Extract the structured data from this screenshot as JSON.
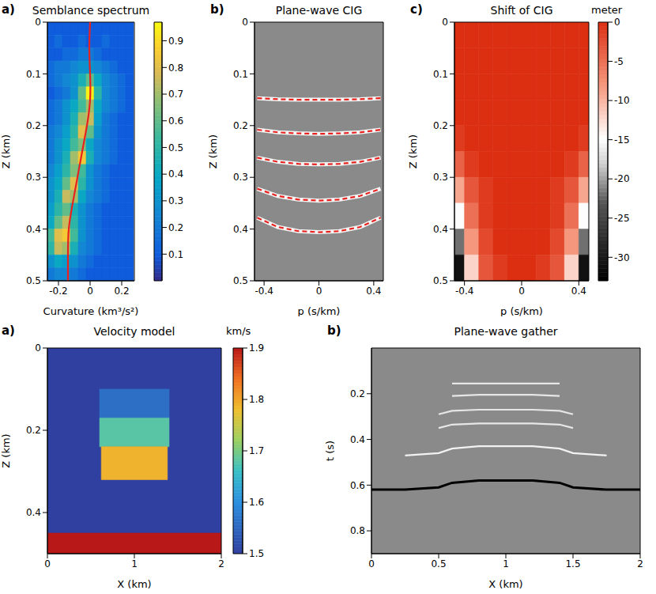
{
  "chart_data": [
    {
      "type": "heatmap",
      "label": "a)",
      "title": "Semblance spectrum",
      "x_label": "Curvature (km³/s²)",
      "y_label": "Z (km)",
      "xlim": [
        -0.27,
        0.28
      ],
      "xticks": [
        -0.2,
        0,
        0.2
      ],
      "ylim": [
        0,
        0.5
      ],
      "yticks": [
        0,
        0.1,
        0.2,
        0.3,
        0.4,
        0.5
      ],
      "cells": {
        "x": [
          -0.25,
          -0.2,
          -0.15,
          -0.1,
          -0.05,
          0,
          0.05,
          0.1,
          0.15,
          0.2,
          0.25
        ],
        "y": [
          0.0125,
          0.0375,
          0.0625,
          0.0875,
          0.1125,
          0.1375,
          0.1625,
          0.1875,
          0.2125,
          0.2375,
          0.2625,
          0.2875,
          0.3125,
          0.3375,
          0.3625,
          0.3875,
          0.4125,
          0.4375,
          0.4625,
          0.4875
        ],
        "values": [
          [
            0.1,
            0.1,
            0.1,
            0.1,
            0.1,
            0.1,
            0.1,
            0.1,
            0.1,
            0.1,
            0.1
          ],
          [
            0.1,
            0.15,
            0.1,
            0.1,
            0.15,
            0.1,
            0.1,
            0.15,
            0.1,
            0.1,
            0.1
          ],
          [
            0.1,
            0.1,
            0.15,
            0.15,
            0.2,
            0.2,
            0.15,
            0.1,
            0.1,
            0.1,
            0.1
          ],
          [
            0.15,
            0.2,
            0.2,
            0.25,
            0.3,
            0.3,
            0.25,
            0.2,
            0.15,
            0.1,
            0.1
          ],
          [
            0.15,
            0.2,
            0.25,
            0.3,
            0.45,
            0.6,
            0.4,
            0.25,
            0.2,
            0.15,
            0.1
          ],
          [
            0.1,
            0.15,
            0.2,
            0.3,
            0.6,
            0.95,
            0.5,
            0.25,
            0.2,
            0.15,
            0.1
          ],
          [
            0.15,
            0.2,
            0.3,
            0.4,
            0.55,
            0.7,
            0.4,
            0.25,
            0.2,
            0.15,
            0.1
          ],
          [
            0.15,
            0.2,
            0.3,
            0.45,
            0.7,
            0.75,
            0.35,
            0.2,
            0.15,
            0.1,
            0.1
          ],
          [
            0.2,
            0.25,
            0.35,
            0.5,
            0.8,
            0.6,
            0.3,
            0.2,
            0.15,
            0.1,
            0.1
          ],
          [
            0.2,
            0.3,
            0.4,
            0.55,
            0.65,
            0.4,
            0.25,
            0.2,
            0.15,
            0.1,
            0.1
          ],
          [
            0.2,
            0.3,
            0.45,
            0.7,
            0.85,
            0.45,
            0.25,
            0.2,
            0.15,
            0.1,
            0.1
          ],
          [
            0.25,
            0.35,
            0.5,
            0.65,
            0.55,
            0.3,
            0.2,
            0.15,
            0.1,
            0.1,
            0.1
          ],
          [
            0.3,
            0.4,
            0.6,
            0.8,
            0.5,
            0.3,
            0.2,
            0.15,
            0.1,
            0.1,
            0.1
          ],
          [
            0.3,
            0.45,
            0.75,
            0.7,
            0.4,
            0.25,
            0.2,
            0.15,
            0.1,
            0.1,
            0.1
          ],
          [
            0.35,
            0.5,
            0.6,
            0.45,
            0.3,
            0.2,
            0.15,
            0.1,
            0.1,
            0.1,
            0.1
          ],
          [
            0.4,
            0.6,
            0.75,
            0.5,
            0.3,
            0.2,
            0.15,
            0.1,
            0.1,
            0.1,
            0.1
          ],
          [
            0.55,
            0.8,
            0.85,
            0.55,
            0.3,
            0.2,
            0.15,
            0.1,
            0.1,
            0.1,
            0.1
          ],
          [
            0.5,
            0.75,
            0.7,
            0.45,
            0.25,
            0.2,
            0.15,
            0.1,
            0.1,
            0.1,
            0.1
          ],
          [
            0.3,
            0.4,
            0.35,
            0.3,
            0.2,
            0.15,
            0.1,
            0.1,
            0.1,
            0.1,
            0.1
          ],
          [
            0.2,
            0.25,
            0.25,
            0.2,
            0.15,
            0.1,
            0.1,
            0.1,
            0.1,
            0.1,
            0.1
          ]
        ]
      },
      "colorbar": {
        "range": [
          0,
          0.97
        ],
        "ticks": [
          0.1,
          0.2,
          0.3,
          0.4,
          0.5,
          0.6,
          0.7,
          0.8,
          0.9
        ]
      },
      "series": [
        {
          "color": "#e8231f",
          "line_style": "solid",
          "x": [
            0,
            -0.005,
            0,
            0,
            -0.02,
            -0.05,
            -0.08,
            -0.11,
            -0.135,
            -0.14,
            -0.14
          ],
          "y": [
            0,
            0.05,
            0.1,
            0.15,
            0.2,
            0.25,
            0.3,
            0.35,
            0.4,
            0.45,
            0.5
          ]
        }
      ]
    },
    {
      "type": "line",
      "label": "b)",
      "title": "Plane-wave CIG",
      "x_label": "p (s/km)",
      "y_label": "Z (km)",
      "xlim": [
        -0.47,
        0.47
      ],
      "xticks": [
        -0.4,
        0,
        0.4
      ],
      "ylim": [
        0,
        0.5
      ],
      "yticks": [
        0,
        0.1,
        0.2,
        0.3,
        0.4,
        0.5
      ],
      "x": [
        -0.45,
        -0.3,
        -0.15,
        0,
        0.15,
        0.3,
        0.45
      ],
      "series": [
        {
          "color": "#e8231f",
          "line_style": "dashed",
          "values": [
            0.147,
            0.149,
            0.15,
            0.15,
            0.15,
            0.149,
            0.147
          ]
        },
        {
          "color": "#e8231f",
          "line_style": "dashed",
          "values": [
            0.208,
            0.213,
            0.215,
            0.216,
            0.215,
            0.213,
            0.208
          ]
        },
        {
          "color": "#e8231f",
          "line_style": "dashed",
          "values": [
            0.262,
            0.27,
            0.274,
            0.275,
            0.274,
            0.27,
            0.262
          ]
        },
        {
          "color": "#e8231f",
          "line_style": "dashed",
          "values": [
            0.322,
            0.336,
            0.343,
            0.345,
            0.343,
            0.336,
            0.322
          ]
        },
        {
          "color": "#e8231f",
          "line_style": "dashed",
          "values": [
            0.378,
            0.396,
            0.404,
            0.406,
            0.404,
            0.396,
            0.378
          ]
        }
      ]
    },
    {
      "type": "heatmap",
      "label": "c)",
      "title": "Shift of CIG",
      "x_label": "p (s/km)",
      "y_label": "Z (km)",
      "xlim": [
        -0.47,
        0.47
      ],
      "xticks": [
        -0.4,
        0,
        0.4
      ],
      "ylim": [
        0,
        0.5
      ],
      "yticks": [
        0,
        0.1,
        0.2,
        0.3,
        0.4,
        0.5
      ],
      "cells": {
        "x": [
          -0.45,
          -0.35,
          -0.25,
          -0.15,
          -0.05,
          0.05,
          0.15,
          0.25,
          0.35,
          0.45
        ],
        "y": [
          0.025,
          0.075,
          0.125,
          0.175,
          0.225,
          0.275,
          0.325,
          0.375,
          0.425,
          0.475
        ],
        "values": [
          [
            0,
            0,
            0,
            0,
            0,
            0,
            0,
            0,
            0,
            0
          ],
          [
            0,
            0,
            0,
            0,
            0,
            0,
            0,
            0,
            0,
            0
          ],
          [
            0,
            0,
            0,
            0,
            0,
            0,
            0,
            0,
            0,
            0
          ],
          [
            0,
            0,
            0,
            0,
            0,
            0,
            0,
            0,
            0,
            0
          ],
          [
            -1,
            0,
            0,
            0,
            0,
            0,
            0,
            0,
            0,
            -1
          ],
          [
            -4,
            -1,
            0,
            0,
            0,
            0,
            0,
            0,
            -1,
            -4
          ],
          [
            -9,
            -3,
            -1,
            0,
            0,
            0,
            0,
            -1,
            -3,
            -9
          ],
          [
            -15,
            -5,
            -1,
            0,
            0,
            0,
            0,
            -1,
            -5,
            -15
          ],
          [
            -22,
            -8,
            -2,
            0,
            0,
            0,
            0,
            -2,
            -8,
            -22
          ],
          [
            -31,
            -12,
            -3,
            -1,
            0,
            0,
            -1,
            -3,
            -12,
            -31
          ]
        ]
      },
      "colorbar": {
        "label": "meter",
        "range": [
          -33,
          0
        ],
        "ticks": [
          0,
          -5,
          -10,
          -15,
          -20,
          -25,
          -30
        ]
      }
    },
    {
      "type": "heatmap",
      "label": "a)",
      "title": "Velocity model",
      "x_label": "X (km)",
      "y_label": "Z (km)",
      "xlim": [
        0,
        2
      ],
      "xticks": [
        0,
        1,
        2
      ],
      "ylim": [
        0,
        0.5
      ],
      "yticks": [
        0,
        0.2,
        0.4
      ],
      "blocks": [
        {
          "x": [
            0,
            2
          ],
          "y": [
            0,
            0.5
          ],
          "value": 1.5
        },
        {
          "x": [
            0.6,
            1.4
          ],
          "y": [
            0.1,
            0.17
          ],
          "value": 1.56
        },
        {
          "x": [
            0.6,
            1.4
          ],
          "y": [
            0.17,
            0.24
          ],
          "value": 1.68
        },
        {
          "x": [
            0.62,
            1.38
          ],
          "y": [
            0.24,
            0.32
          ],
          "value": 1.79
        },
        {
          "x": [
            0,
            2
          ],
          "y": [
            0.45,
            0.5
          ],
          "value": 1.9
        }
      ],
      "colorbar": {
        "label": "km/s",
        "range": [
          1.5,
          1.9
        ],
        "ticks": [
          1.5,
          1.6,
          1.7,
          1.8,
          1.9
        ]
      }
    },
    {
      "type": "line",
      "label": "b)",
      "title": "Plane-wave gather",
      "x_label": "X (km)",
      "y_label": "t (s)",
      "xlim": [
        0,
        2
      ],
      "xticks": [
        0,
        0.5,
        1,
        1.5,
        2
      ],
      "ylim": [
        0,
        0.9
      ],
      "yticks": [
        0.2,
        0.4,
        0.6,
        0.8
      ],
      "x": [
        0,
        0.25,
        0.5,
        0.6,
        0.8,
        1,
        1.2,
        1.4,
        1.5,
        1.75,
        2
      ],
      "series": [
        {
          "color": "#e6e6e6",
          "line_style": "solid",
          "values": [
            null,
            null,
            null,
            0.155,
            0.155,
            0.155,
            0.155,
            0.155,
            null,
            null,
            null
          ]
        },
        {
          "color": "#e6e6e6",
          "line_style": "solid",
          "values": [
            null,
            null,
            null,
            0.21,
            0.205,
            0.205,
            0.205,
            0.21,
            null,
            null,
            null
          ]
        },
        {
          "color": "#e6e6e6",
          "line_style": "solid",
          "values": [
            null,
            null,
            0.29,
            0.275,
            0.27,
            0.27,
            0.27,
            0.275,
            0.29,
            null,
            null
          ]
        },
        {
          "color": "#e6e6e6",
          "line_style": "solid",
          "values": [
            null,
            null,
            0.35,
            0.335,
            0.33,
            0.33,
            0.33,
            0.335,
            0.35,
            null,
            null
          ]
        },
        {
          "color": "#f2f2f2",
          "line_style": "solid",
          "values": [
            null,
            0.47,
            0.46,
            0.44,
            0.43,
            0.43,
            0.43,
            0.44,
            0.46,
            0.47,
            null
          ]
        },
        {
          "color": "#000000",
          "line_style": "solid",
          "values": [
            0.62,
            0.62,
            0.61,
            0.59,
            0.58,
            0.58,
            0.58,
            0.59,
            0.61,
            0.62,
            0.62
          ]
        }
      ]
    }
  ]
}
